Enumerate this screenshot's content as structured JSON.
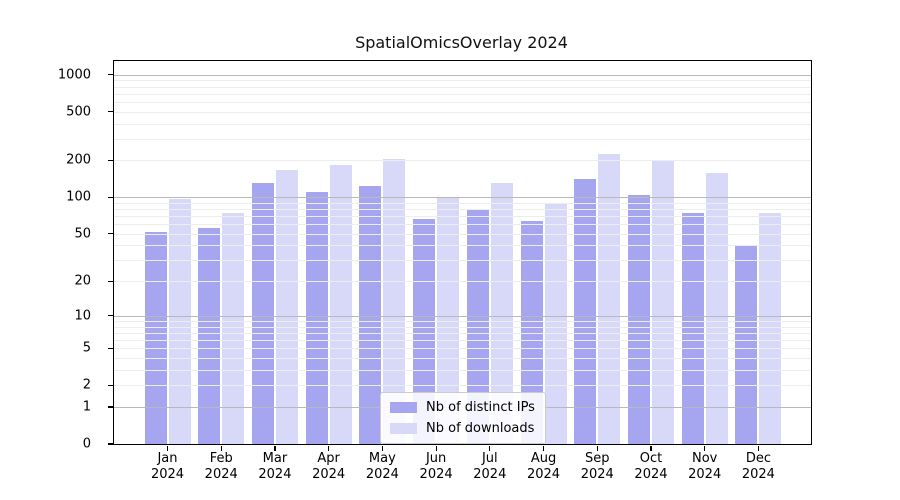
{
  "title": "SpatialOmicsOverlay 2024",
  "chart_data": {
    "type": "bar",
    "title": "SpatialOmicsOverlay 2024",
    "categories": [
      "Jan 2024",
      "Feb 2024",
      "Mar 2024",
      "Apr 2024",
      "May 2024",
      "Jun 2024",
      "Jul 2024",
      "Aug 2024",
      "Sep 2024",
      "Oct 2024",
      "Nov 2024",
      "Dec 2024"
    ],
    "series": [
      {
        "name": "Nb of distinct IPs",
        "color": "#a5a5f0",
        "values": [
          52,
          56,
          131,
          110,
          124,
          66,
          79,
          64,
          141,
          105,
          74,
          40
        ]
      },
      {
        "name": "Nb of downloads",
        "color": "#d8d8f8",
        "values": [
          97,
          74,
          168,
          183,
          206,
          101,
          131,
          90,
          226,
          202,
          157,
          74
        ]
      }
    ],
    "xlabel": "",
    "ylabel": "",
    "yscale": "log1p",
    "ylim": [
      0,
      1300
    ],
    "yticks": [
      0,
      1,
      2,
      5,
      10,
      20,
      50,
      100,
      200,
      500,
      1000
    ],
    "grid": "both",
    "grid_minor_ticks": [
      2,
      3,
      4,
      5,
      6,
      7,
      8,
      9,
      20,
      30,
      40,
      50,
      60,
      70,
      80,
      90,
      200,
      300,
      400,
      500,
      600,
      700,
      800,
      900
    ],
    "grid_major_ticks": [
      1,
      10,
      100,
      1000
    ],
    "legend_position": "lower center",
    "legend": [
      "Nb of distinct IPs",
      "Nb of downloads"
    ]
  },
  "colors": {
    "distinct_ips": "#a5a5f0",
    "downloads": "#d8d8f8",
    "grid_minor": "#ededed",
    "grid_major": "#b9b9b9",
    "axis": "#000000"
  }
}
